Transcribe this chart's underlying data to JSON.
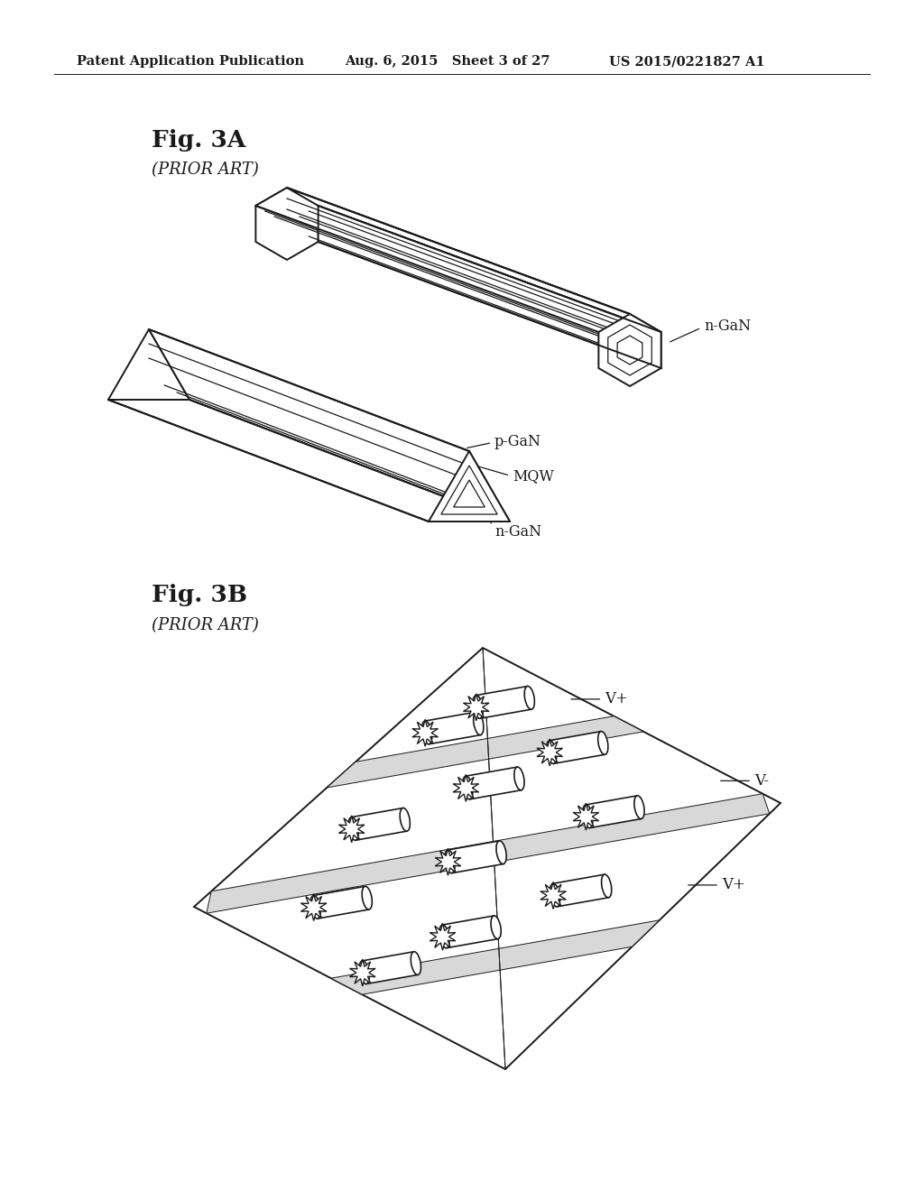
{
  "bg_color": "#ffffff",
  "header_left": "Patent Application Publication",
  "header_mid": "Aug. 6, 2015   Sheet 3 of 27",
  "header_right": "US 2015/0221827 A1",
  "fig3a_label": "Fig. 3A",
  "fig3a_prior": "(PRIOR ART)",
  "fig3b_label": "Fig. 3B",
  "fig3b_prior": "(PRIOR ART)",
  "line_color": "#1a1a1a",
  "line_width": 1.4,
  "thin_line": 0.9
}
